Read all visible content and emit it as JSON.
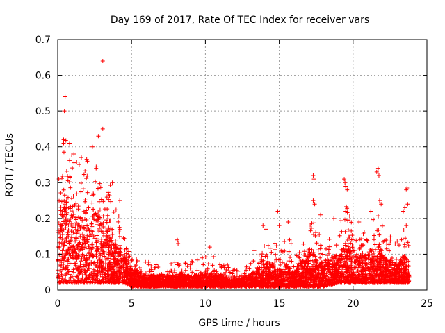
{
  "chart_data": {
    "type": "scatter",
    "title": "Day 169 of 2017, Rate Of TEC Index for receiver vars",
    "xlabel": "GPS time / hours",
    "ylabel": "ROTI / TECUs",
    "xlim": [
      0,
      25
    ],
    "ylim": [
      0,
      0.7
    ],
    "xticks": [
      0,
      5,
      10,
      15,
      20,
      25
    ],
    "yticks": [
      0,
      0.1,
      0.2,
      0.3,
      0.4,
      0.5,
      0.6,
      0.7
    ],
    "xtick_labels": [
      "0",
      "5",
      "10",
      "15",
      "20",
      "25"
    ],
    "ytick_labels": [
      "0",
      "0.1",
      "0.2",
      "0.3",
      "0.4",
      "0.5",
      "0.6",
      "0.7"
    ],
    "grid": true,
    "marker": "+",
    "marker_color": "#ff0000",
    "series_name": "ROTI",
    "envelope": [
      {
        "t": 0.0,
        "base": 0.02,
        "typ": 0.18,
        "max": 0.3
      },
      {
        "t": 0.5,
        "base": 0.02,
        "typ": 0.25,
        "max": 0.42
      },
      {
        "t": 1.0,
        "base": 0.02,
        "typ": 0.25,
        "max": 0.4
      },
      {
        "t": 1.5,
        "base": 0.02,
        "typ": 0.22,
        "max": 0.36
      },
      {
        "t": 2.0,
        "base": 0.02,
        "typ": 0.22,
        "max": 0.38
      },
      {
        "t": 2.5,
        "base": 0.02,
        "typ": 0.22,
        "max": 0.35
      },
      {
        "t": 3.0,
        "base": 0.02,
        "typ": 0.2,
        "max": 0.33
      },
      {
        "t": 3.5,
        "base": 0.02,
        "typ": 0.16,
        "max": 0.3
      },
      {
        "t": 4.0,
        "base": 0.02,
        "typ": 0.13,
        "max": 0.25
      },
      {
        "t": 4.5,
        "base": 0.02,
        "typ": 0.1,
        "max": 0.15
      },
      {
        "t": 5.0,
        "base": 0.01,
        "typ": 0.06,
        "max": 0.1
      },
      {
        "t": 6.0,
        "base": 0.01,
        "typ": 0.04,
        "max": 0.08
      },
      {
        "t": 7.0,
        "base": 0.01,
        "typ": 0.04,
        "max": 0.07
      },
      {
        "t": 8.0,
        "base": 0.01,
        "typ": 0.04,
        "max": 0.08
      },
      {
        "t": 9.0,
        "base": 0.01,
        "typ": 0.04,
        "max": 0.08
      },
      {
        "t": 10.0,
        "base": 0.01,
        "typ": 0.05,
        "max": 0.11
      },
      {
        "t": 11.0,
        "base": 0.01,
        "typ": 0.04,
        "max": 0.08
      },
      {
        "t": 12.0,
        "base": 0.01,
        "typ": 0.03,
        "max": 0.06
      },
      {
        "t": 13.0,
        "base": 0.01,
        "typ": 0.04,
        "max": 0.07
      },
      {
        "t": 13.5,
        "base": 0.01,
        "typ": 0.06,
        "max": 0.11
      },
      {
        "t": 14.0,
        "base": 0.01,
        "typ": 0.08,
        "max": 0.14
      },
      {
        "t": 15.0,
        "base": 0.01,
        "typ": 0.06,
        "max": 0.13
      },
      {
        "t": 15.5,
        "base": 0.01,
        "typ": 0.07,
        "max": 0.14
      },
      {
        "t": 16.0,
        "base": 0.01,
        "typ": 0.05,
        "max": 0.08
      },
      {
        "t": 16.5,
        "base": 0.01,
        "typ": 0.08,
        "max": 0.13
      },
      {
        "t": 17.0,
        "base": 0.01,
        "typ": 0.1,
        "max": 0.18
      },
      {
        "t": 17.5,
        "base": 0.01,
        "typ": 0.1,
        "max": 0.2
      },
      {
        "t": 18.0,
        "base": 0.01,
        "typ": 0.08,
        "max": 0.14
      },
      {
        "t": 19.0,
        "base": 0.02,
        "typ": 0.1,
        "max": 0.18
      },
      {
        "t": 19.5,
        "base": 0.02,
        "typ": 0.13,
        "max": 0.24
      },
      {
        "t": 20.0,
        "base": 0.02,
        "typ": 0.1,
        "max": 0.18
      },
      {
        "t": 21.0,
        "base": 0.02,
        "typ": 0.1,
        "max": 0.18
      },
      {
        "t": 21.5,
        "base": 0.02,
        "typ": 0.14,
        "max": 0.24
      },
      {
        "t": 22.0,
        "base": 0.02,
        "typ": 0.1,
        "max": 0.18
      },
      {
        "t": 23.0,
        "base": 0.02,
        "typ": 0.07,
        "max": 0.14
      },
      {
        "t": 23.5,
        "base": 0.02,
        "typ": 0.1,
        "max": 0.2
      },
      {
        "t": 23.8,
        "base": 0.02,
        "typ": 0.06,
        "max": 0.12
      }
    ],
    "outliers": [
      {
        "x": 0.5,
        "y": 0.54
      },
      {
        "x": 0.45,
        "y": 0.5
      },
      {
        "x": 0.4,
        "y": 0.42
      },
      {
        "x": 0.4,
        "y": 0.41
      },
      {
        "x": 0.8,
        "y": 0.41
      },
      {
        "x": 1.1,
        "y": 0.38
      },
      {
        "x": 2.75,
        "y": 0.43
      },
      {
        "x": 3.05,
        "y": 0.64
      },
      {
        "x": 3.05,
        "y": 0.45
      },
      {
        "x": 2.35,
        "y": 0.4
      },
      {
        "x": 1.6,
        "y": 0.37
      },
      {
        "x": 3.7,
        "y": 0.3
      },
      {
        "x": 4.2,
        "y": 0.25
      },
      {
        "x": 2.6,
        "y": 0.34
      },
      {
        "x": 2.0,
        "y": 0.36
      },
      {
        "x": 8.1,
        "y": 0.14
      },
      {
        "x": 8.15,
        "y": 0.13
      },
      {
        "x": 10.3,
        "y": 0.12
      },
      {
        "x": 13.3,
        "y": 0.11
      },
      {
        "x": 13.9,
        "y": 0.18
      },
      {
        "x": 14.1,
        "y": 0.17
      },
      {
        "x": 14.9,
        "y": 0.22
      },
      {
        "x": 15.0,
        "y": 0.18
      },
      {
        "x": 15.6,
        "y": 0.19
      },
      {
        "x": 15.7,
        "y": 0.14
      },
      {
        "x": 15.8,
        "y": 0.13
      },
      {
        "x": 17.3,
        "y": 0.32
      },
      {
        "x": 17.35,
        "y": 0.31
      },
      {
        "x": 17.3,
        "y": 0.25
      },
      {
        "x": 17.4,
        "y": 0.24
      },
      {
        "x": 17.8,
        "y": 0.21
      },
      {
        "x": 18.7,
        "y": 0.2
      },
      {
        "x": 19.4,
        "y": 0.31
      },
      {
        "x": 19.45,
        "y": 0.3
      },
      {
        "x": 19.5,
        "y": 0.29
      },
      {
        "x": 19.6,
        "y": 0.28
      },
      {
        "x": 19.5,
        "y": 0.22
      },
      {
        "x": 20.4,
        "y": 0.19
      },
      {
        "x": 21.7,
        "y": 0.34
      },
      {
        "x": 21.6,
        "y": 0.33
      },
      {
        "x": 21.75,
        "y": 0.32
      },
      {
        "x": 21.8,
        "y": 0.25
      },
      {
        "x": 21.9,
        "y": 0.24
      },
      {
        "x": 21.2,
        "y": 0.22
      },
      {
        "x": 23.6,
        "y": 0.28
      },
      {
        "x": 23.65,
        "y": 0.285
      },
      {
        "x": 23.5,
        "y": 0.23
      },
      {
        "x": 23.7,
        "y": 0.24
      },
      {
        "x": 23.4,
        "y": 0.22
      },
      {
        "x": 23.6,
        "y": 0.18
      }
    ]
  }
}
